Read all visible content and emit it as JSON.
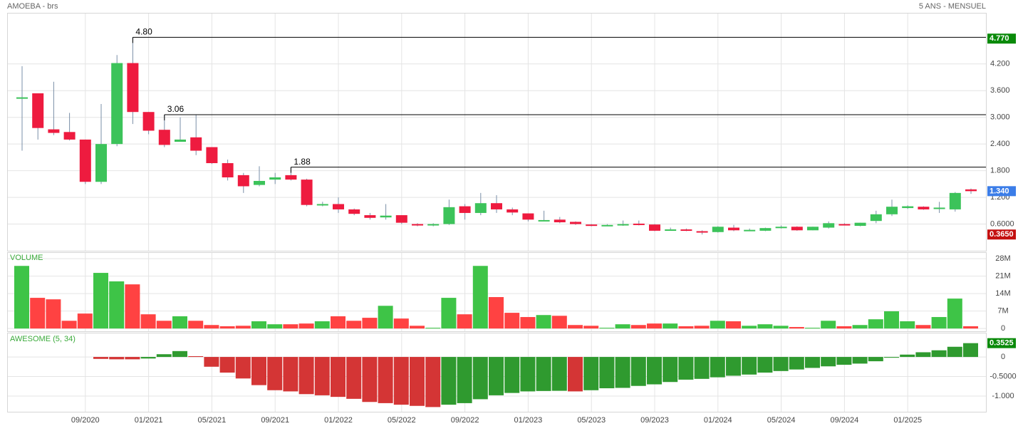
{
  "chart_data": [
    {
      "type": "candlestick",
      "title": "AMOEBA - brs",
      "subtitle": "5 ANS - MENSUEL",
      "categories": [
        null,
        null,
        null,
        null,
        "09/2020",
        null,
        null,
        null,
        "01/2021",
        null,
        null,
        null,
        "05/2021",
        null,
        null,
        null,
        "09/2021",
        null,
        null,
        null,
        "01/2022",
        null,
        null,
        null,
        "05/2022",
        null,
        null,
        null,
        "09/2022",
        null,
        null,
        null,
        "01/2023",
        null,
        null,
        null,
        "05/2023",
        null,
        null,
        null,
        "09/2023",
        null,
        null,
        null,
        "01/2024",
        null,
        null,
        null,
        "05/2024",
        null,
        null,
        null,
        "09/2024",
        null,
        null,
        null,
        "01/2025",
        null,
        null,
        null,
        null
      ],
      "open": [
        3.43,
        3.54,
        2.73,
        2.67,
        2.5,
        1.55,
        2.4,
        4.22,
        3.12,
        2.72,
        2.45,
        2.55,
        2.33,
        1.97,
        1.7,
        1.48,
        1.6,
        1.7,
        1.6,
        1.02,
        1.05,
        0.93,
        0.8,
        0.75,
        0.8,
        0.6,
        0.57,
        0.6,
        1.0,
        0.85,
        1.07,
        0.93,
        0.84,
        0.68,
        0.7,
        0.65,
        0.59,
        0.57,
        0.58,
        0.61,
        0.59,
        0.46,
        0.48,
        0.44,
        0.42,
        0.52,
        0.46,
        0.45,
        0.52,
        0.54,
        0.46,
        0.52,
        0.6,
        0.56,
        0.67,
        0.82,
        0.96,
        0.99,
        0.95,
        0.93,
        1.38
      ],
      "high": [
        4.15,
        3.54,
        3.8,
        3.1,
        2.5,
        3.3,
        4.4,
        4.8,
        3.12,
        3.06,
        3.0,
        3.06,
        2.33,
        2.05,
        1.75,
        1.9,
        1.75,
        1.88,
        1.62,
        1.1,
        1.2,
        0.95,
        0.85,
        1.05,
        0.8,
        0.62,
        0.62,
        1.15,
        1.05,
        1.3,
        1.25,
        0.97,
        0.84,
        0.9,
        0.76,
        0.66,
        0.6,
        0.6,
        0.68,
        0.68,
        0.6,
        0.52,
        0.5,
        0.46,
        0.55,
        0.58,
        0.5,
        0.52,
        0.57,
        0.55,
        0.54,
        0.66,
        0.62,
        0.63,
        0.9,
        1.15,
        1.02,
        1.0,
        1.1,
        1.32,
        1.4
      ],
      "low": [
        2.25,
        2.5,
        2.6,
        2.48,
        1.5,
        1.5,
        2.35,
        2.85,
        2.62,
        2.33,
        2.45,
        2.15,
        1.95,
        1.58,
        1.3,
        1.45,
        1.5,
        1.58,
        1.0,
        1.0,
        0.85,
        0.8,
        0.7,
        0.7,
        0.6,
        0.55,
        0.55,
        0.58,
        0.7,
        0.8,
        0.85,
        0.8,
        0.66,
        0.68,
        0.62,
        0.58,
        0.55,
        0.56,
        0.56,
        0.57,
        0.44,
        0.45,
        0.44,
        0.365,
        0.41,
        0.44,
        0.44,
        0.44,
        0.5,
        0.45,
        0.46,
        0.5,
        0.57,
        0.55,
        0.62,
        0.78,
        0.94,
        0.92,
        0.85,
        0.88,
        1.28
      ],
      "close": [
        3.45,
        2.76,
        2.65,
        2.5,
        1.55,
        2.4,
        4.22,
        3.12,
        2.7,
        2.38,
        2.5,
        2.25,
        1.97,
        1.65,
        1.45,
        1.57,
        1.65,
        1.6,
        1.03,
        1.05,
        0.93,
        0.83,
        0.74,
        0.79,
        0.63,
        0.57,
        0.6,
        0.98,
        0.85,
        1.07,
        0.93,
        0.86,
        0.7,
        0.69,
        0.64,
        0.6,
        0.57,
        0.58,
        0.6,
        0.59,
        0.45,
        0.48,
        0.45,
        0.42,
        0.54,
        0.46,
        0.47,
        0.51,
        0.54,
        0.46,
        0.54,
        0.62,
        0.58,
        0.63,
        0.82,
        0.99,
        1.0,
        0.93,
        0.97,
        1.3,
        1.34
      ],
      "up_color": "#3cc35a",
      "down_color": "#ee1b3f",
      "wick_color": "#7a8fa8",
      "ylim": [
        0,
        5.35
      ],
      "yticks": [
        {
          "value": 0.6,
          "label": "0.6000"
        },
        {
          "value": 1.2,
          "label": "1.200"
        },
        {
          "value": 1.8,
          "label": "1.800"
        },
        {
          "value": 2.4,
          "label": "2.400"
        },
        {
          "value": 3.0,
          "label": "3.000"
        },
        {
          "value": 3.6,
          "label": "3.600"
        },
        {
          "value": 4.2,
          "label": "4.200"
        }
      ],
      "grid": true,
      "annotations": [
        {
          "value": 4.8,
          "label": "4.80"
        },
        {
          "value": 3.06,
          "label": "3.06"
        },
        {
          "value": 1.88,
          "label": "1.88"
        }
      ],
      "price_markers": [
        {
          "value": 4.77,
          "label": "4.770",
          "color": "#0a8a0a"
        },
        {
          "value": 1.34,
          "label": "1.340",
          "color": "#3b7de8"
        },
        {
          "value": 0.365,
          "label": "0.3650",
          "color": "#c41010"
        }
      ]
    },
    {
      "type": "bar",
      "title": "VOLUME",
      "values": [
        25.1,
        12.3,
        11.7,
        3.1,
        6.0,
        22.3,
        18.9,
        17.7,
        5.7,
        3.1,
        4.9,
        3.1,
        1.4,
        0.9,
        1.1,
        2.9,
        1.7,
        1.7,
        2.0,
        2.9,
        4.9,
        3.1,
        4.3,
        9.1,
        4.0,
        1.1,
        0.3,
        12.3,
        5.7,
        25.1,
        12.6,
        6.3,
        4.6,
        5.4,
        5.1,
        1.4,
        1.1,
        0.3,
        1.7,
        1.4,
        2.0,
        2.0,
        0.9,
        1.1,
        3.1,
        2.9,
        1.1,
        1.7,
        1.1,
        0.6,
        0.3,
        3.1,
        0.9,
        1.4,
        3.7,
        6.9,
        2.9,
        1.4,
        4.6,
        12.0,
        0.9
      ],
      "up_color": "#3ec447",
      "down_color": "#ff4242",
      "ylim": [
        -1.1,
        30.6
      ],
      "yticks": [
        0,
        {
          "value": 7,
          "label": "7M"
        },
        {
          "value": 14,
          "label": "14M"
        },
        {
          "value": 21,
          "label": "21M"
        },
        {
          "value": 28,
          "label": "28M"
        }
      ],
      "grid": true
    },
    {
      "type": "bar",
      "title": "AWESOME (5, 34)",
      "values": [
        null,
        null,
        null,
        null,
        null,
        -0.05,
        -0.06,
        -0.06,
        -0.04,
        0.07,
        0.15,
        0.02,
        -0.25,
        -0.4,
        -0.55,
        -0.72,
        -0.85,
        -0.88,
        -0.95,
        -0.98,
        -1.02,
        -1.07,
        -1.15,
        -1.18,
        -1.22,
        -1.25,
        -1.28,
        -1.22,
        -1.18,
        -1.08,
        -0.98,
        -0.92,
        -0.88,
        -0.87,
        -0.865,
        -0.88,
        -0.85,
        -0.8,
        -0.79,
        -0.74,
        -0.7,
        -0.64,
        -0.58,
        -0.56,
        -0.52,
        -0.48,
        -0.45,
        -0.4,
        -0.36,
        -0.32,
        -0.28,
        -0.24,
        -0.2,
        -0.17,
        -0.11,
        -0.02,
        0.06,
        0.12,
        0.17,
        0.26,
        0.3525
      ],
      "last_label": "0.3525",
      "up_color": "#2f9a2f",
      "down_color": "#d43535",
      "ylim": [
        -1.4,
        0.62
      ],
      "yticks": [
        {
          "value": -1,
          "label": "-1.000"
        },
        {
          "value": -0.5,
          "label": "-0.5000"
        },
        0
      ],
      "grid": true
    }
  ]
}
